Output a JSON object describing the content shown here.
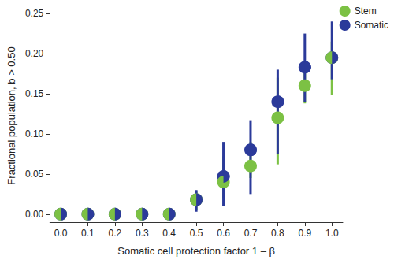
{
  "chart_data": {
    "type": "scatter",
    "x_label": "Somatic cell protection factor 1 – β",
    "y_label": "Fractional population, b > 0.50",
    "x": [
      0.0,
      0.1,
      0.2,
      0.3,
      0.4,
      0.5,
      0.6,
      0.7,
      0.8,
      0.9,
      1.0
    ],
    "series": [
      {
        "name": "Stem",
        "color": "#7cc144",
        "marker": "circle",
        "values": [
          0,
          0,
          0,
          0,
          0,
          0.018,
          0.04,
          0.06,
          0.12,
          0.16,
          0.195
        ],
        "error_low": [
          null,
          null,
          null,
          null,
          null,
          0.005,
          0.02,
          0.045,
          0.062,
          0.138,
          0.148
        ],
        "error_high": [
          null,
          null,
          null,
          null,
          null,
          0.028,
          0.072,
          0.09,
          0.17,
          0.18,
          0.215
        ]
      },
      {
        "name": "Somatic",
        "color": "#2b3a9a",
        "marker": "circle",
        "values": [
          0,
          0,
          0,
          0,
          0,
          0.018,
          0.047,
          0.08,
          0.14,
          0.183,
          0.195
        ],
        "error_low": [
          null,
          null,
          null,
          null,
          null,
          0.003,
          0.01,
          0.025,
          0.075,
          0.14,
          0.168
        ],
        "error_high": [
          null,
          null,
          null,
          null,
          null,
          0.03,
          0.09,
          0.117,
          0.18,
          0.225,
          0.24
        ]
      }
    ],
    "xlim": [
      -0.04,
      1.04
    ],
    "xticks": [
      {
        "value": 0,
        "label": "0.0"
      },
      {
        "value": 0.1,
        "label": "0.1"
      },
      {
        "value": 0.2,
        "label": "0.2"
      },
      {
        "value": 0.3,
        "label": "0.3"
      },
      {
        "value": 0.4,
        "label": "0.4"
      },
      {
        "value": 0.5,
        "label": "0.5"
      },
      {
        "value": 0.6,
        "label": "0.6"
      },
      {
        "value": 0.7,
        "label": "0.7"
      },
      {
        "value": 0.8,
        "label": "0.8"
      },
      {
        "value": 0.9,
        "label": "0.9"
      },
      {
        "value": 1,
        "label": "1.0"
      }
    ],
    "ylim": [
      -0.01,
      0.255
    ],
    "yticks": [
      {
        "value": 0,
        "label": "0.00"
      },
      {
        "value": 0.05,
        "label": "0.05"
      },
      {
        "value": 0.1,
        "label": "0.10"
      },
      {
        "value": 0.15,
        "label": "0.15"
      },
      {
        "value": 0.2,
        "label": "0.20"
      },
      {
        "value": 0.25,
        "label": "0.25"
      }
    ],
    "grid": false,
    "legend": "top-right"
  }
}
